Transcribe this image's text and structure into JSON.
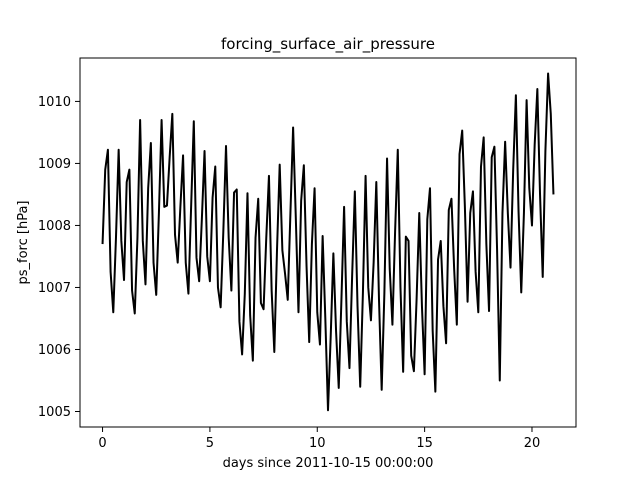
{
  "chart_data": {
    "type": "line",
    "title": "forcing_surface_air_pressure",
    "xlabel": "days since 2011-10-15 00:00:00",
    "ylabel": "ps_forc [hPa]",
    "xlim": [
      -1.05,
      22.05
    ],
    "ylim": [
      1004.75,
      1010.7
    ],
    "x_ticks": [
      0,
      5,
      10,
      15,
      20
    ],
    "x_tick_labels": [
      "0",
      "5",
      "10",
      "15",
      "20"
    ],
    "y_ticks": [
      1005,
      1006,
      1007,
      1008,
      1009,
      1010
    ],
    "y_tick_labels": [
      "1005",
      "1006",
      "1007",
      "1008",
      "1009",
      "1010"
    ],
    "grid": false,
    "legend": "none",
    "line_color": "#000000",
    "series": [
      {
        "x": [
          0,
          0.125,
          0.25,
          0.375,
          0.5,
          0.625,
          0.75,
          0.875,
          1,
          1.125,
          1.25,
          1.375,
          1.5,
          1.625,
          1.75,
          1.875,
          2,
          2.125,
          2.25,
          2.375,
          2.5,
          2.625,
          2.75,
          2.875,
          3,
          3.125,
          3.25,
          3.375,
          3.5,
          3.625,
          3.75,
          3.875,
          4,
          4.125,
          4.25,
          4.375,
          4.5,
          4.625,
          4.75,
          4.875,
          5,
          5.125,
          5.25,
          5.375,
          5.5,
          5.625,
          5.75,
          5.875,
          6,
          6.125,
          6.25,
          6.375,
          6.5,
          6.625,
          6.75,
          6.875,
          7,
          7.125,
          7.25,
          7.375,
          7.5,
          7.625,
          7.75,
          7.875,
          8,
          8.125,
          8.25,
          8.375,
          8.5,
          8.625,
          8.75,
          8.875,
          9,
          9.125,
          9.25,
          9.375,
          9.5,
          9.625,
          9.75,
          9.875,
          10,
          10.125,
          10.25,
          10.375,
          10.5,
          10.625,
          10.75,
          10.875,
          11,
          11.125,
          11.25,
          11.375,
          11.5,
          11.625,
          11.75,
          11.875,
          12,
          12.125,
          12.25,
          12.375,
          12.5,
          12.625,
          12.75,
          12.875,
          13,
          13.125,
          13.25,
          13.375,
          13.5,
          13.625,
          13.75,
          13.875,
          14,
          14.125,
          14.25,
          14.375,
          14.5,
          14.625,
          14.75,
          14.875,
          15,
          15.125,
          15.25,
          15.375,
          15.5,
          15.625,
          15.75,
          15.875,
          16,
          16.125,
          16.25,
          16.375,
          16.5,
          16.625,
          16.75,
          16.875,
          17,
          17.125,
          17.25,
          17.375,
          17.5,
          17.625,
          17.75,
          17.875,
          18,
          18.125,
          18.25,
          18.375,
          18.5,
          18.625,
          18.75,
          18.875,
          19,
          19.125,
          19.25,
          19.375,
          19.5,
          19.625,
          19.75,
          19.875,
          20,
          20.125,
          20.25,
          20.375,
          20.5,
          20.625,
          20.75,
          20.875,
          21
        ],
        "y": [
          1007.7,
          1008.9,
          1009.22,
          1007.25,
          1006.6,
          1007.8,
          1009.22,
          1007.75,
          1007.12,
          1008.7,
          1008.9,
          1006.95,
          1006.58,
          1007.8,
          1009.7,
          1007.75,
          1007.05,
          1008.6,
          1009.33,
          1007.4,
          1006.88,
          1008.2,
          1009.7,
          1008.3,
          1008.32,
          1009.1,
          1009.8,
          1007.85,
          1007.4,
          1008.3,
          1009.13,
          1007.4,
          1006.9,
          1008.3,
          1009.68,
          1007.48,
          1007.1,
          1008.1,
          1009.2,
          1007.5,
          1007.1,
          1008.45,
          1008.95,
          1007.0,
          1006.68,
          1007.9,
          1009.28,
          1007.8,
          1006.95,
          1008.53,
          1008.58,
          1006.45,
          1005.92,
          1006.9,
          1008.52,
          1006.55,
          1005.82,
          1007.8,
          1008.43,
          1006.75,
          1006.65,
          1007.8,
          1008.8,
          1006.95,
          1005.96,
          1007.6,
          1008.98,
          1007.6,
          1007.22,
          1006.8,
          1008.2,
          1009.58,
          1008.13,
          1006.6,
          1008.4,
          1008.97,
          1007.35,
          1006.12,
          1007.7,
          1008.6,
          1006.6,
          1006.08,
          1007.83,
          1006.5,
          1005.02,
          1006.2,
          1007.55,
          1006.3,
          1005.38,
          1006.8,
          1008.3,
          1006.45,
          1005.7,
          1007.2,
          1008.55,
          1006.7,
          1005.4,
          1006.9,
          1008.8,
          1007.0,
          1006.47,
          1007.4,
          1008.7,
          1006.8,
          1005.35,
          1006.9,
          1009.08,
          1007.3,
          1006.4,
          1007.9,
          1009.22,
          1007.0,
          1005.64,
          1007.82,
          1007.75,
          1005.9,
          1005.65,
          1006.8,
          1008.2,
          1006.7,
          1005.6,
          1008.1,
          1008.6,
          1006.3,
          1005.32,
          1007.45,
          1007.75,
          1006.7,
          1006.1,
          1008.25,
          1008.43,
          1007.3,
          1006.4,
          1009.15,
          1009.53,
          1008.3,
          1006.77,
          1008.2,
          1008.55,
          1007.25,
          1006.6,
          1008.95,
          1009.42,
          1007.7,
          1006.62,
          1009.1,
          1009.27,
          1007.6,
          1005.5,
          1008.2,
          1009.35,
          1008.2,
          1007.32,
          1008.9,
          1010.1,
          1008.22,
          1006.92,
          1008.2,
          1010.02,
          1008.6,
          1008.0,
          1009.3,
          1010.2,
          1008.5,
          1007.17,
          1009.2,
          1010.45,
          1009.8,
          1008.5
        ]
      }
    ]
  }
}
